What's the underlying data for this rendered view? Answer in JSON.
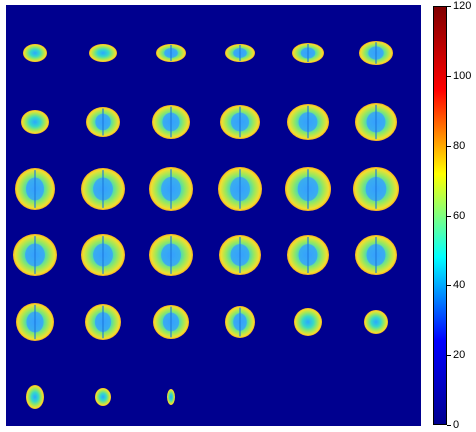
{
  "image": {
    "description_kind": "montage-of-axial-brain-slices",
    "rows": 6,
    "columns": 6,
    "slice_count": 33,
    "background_color": "#00008f"
  },
  "colorbar": {
    "colormap": "jet",
    "min": 0,
    "max": 120,
    "ticks": [
      "0",
      "20",
      "40",
      "60",
      "80",
      "100",
      "120"
    ],
    "tick_values": [
      0,
      20,
      40,
      60,
      80,
      100,
      120
    ],
    "stops": [
      "#00008f",
      "#0000ff",
      "#00ffff",
      "#ffff00",
      "#ff0000",
      "#800000"
    ]
  }
}
